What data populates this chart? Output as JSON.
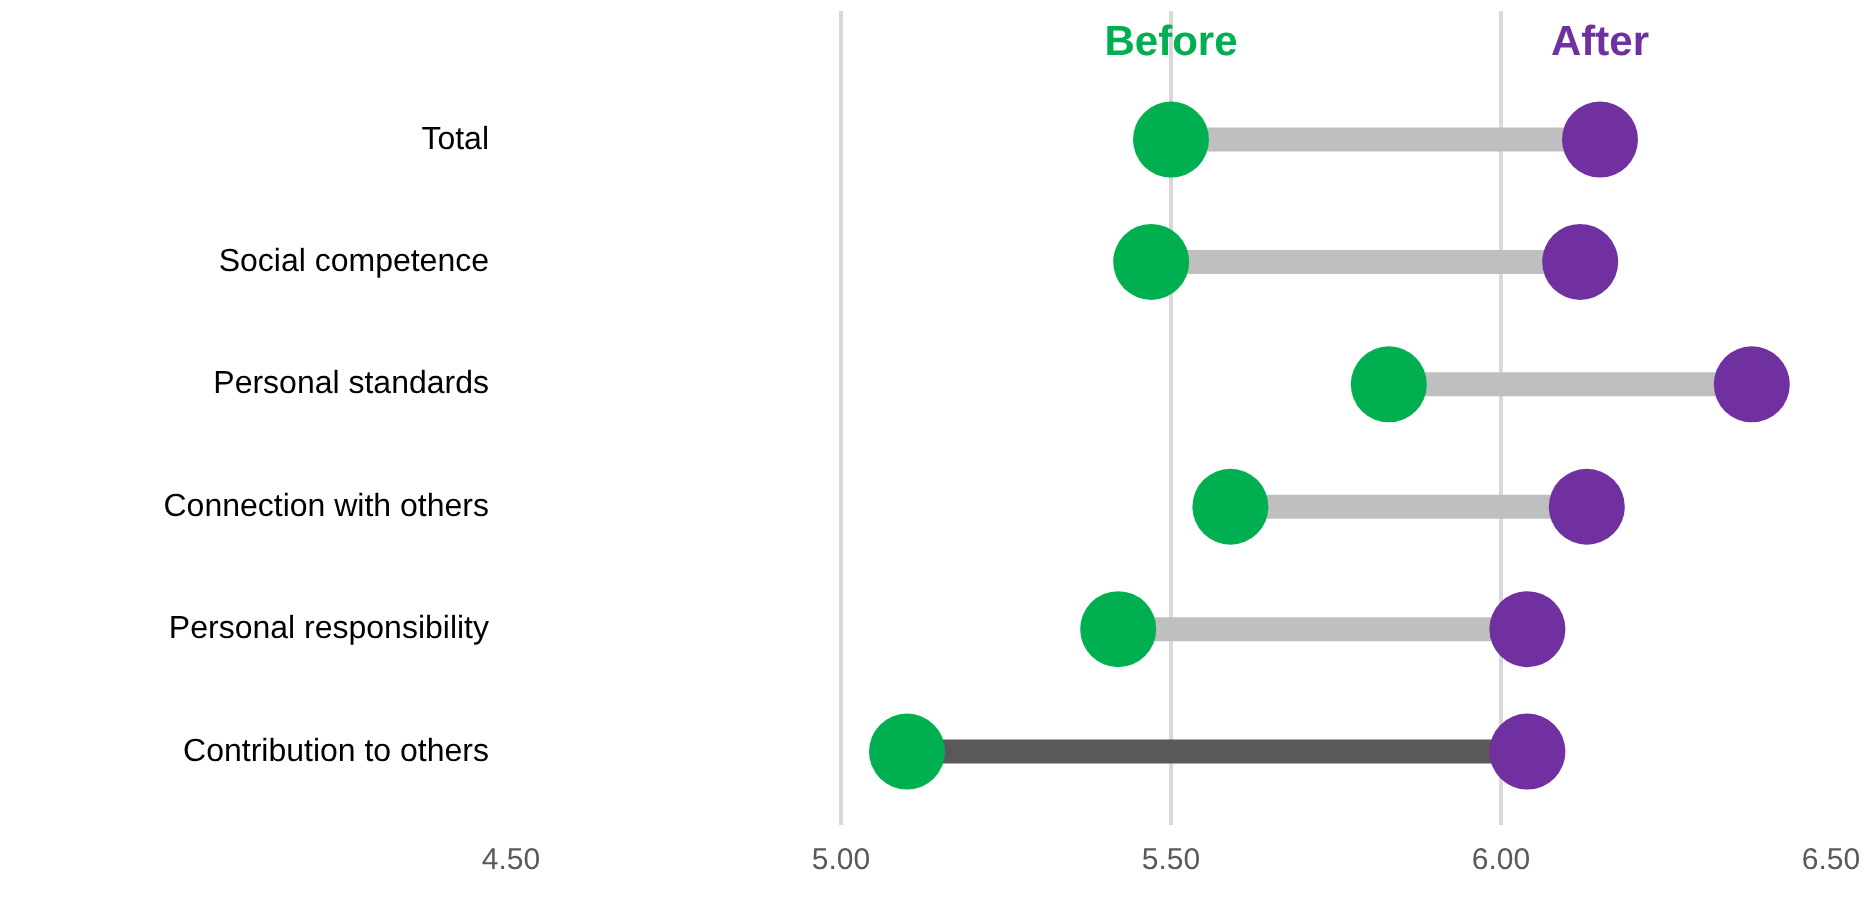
{
  "chart_data": {
    "type": "scatter",
    "orientation": "horizontal",
    "categories": [
      "Total",
      "Social competence",
      "Personal standards",
      "Connection with others",
      "Personal responsibility",
      "Contribution to others"
    ],
    "colors": [
      "#bfbfbf",
      "#bfbfbf",
      "#bfbfbf",
      "#bfbfbf",
      "#bfbfbf",
      "#595959"
    ],
    "series": [
      {
        "name": "Before",
        "color": "#00b050",
        "values": [
          5.5,
          5.47,
          5.83,
          5.59,
          5.42,
          5.1
        ]
      },
      {
        "name": "After",
        "color": "#7030a0",
        "values": [
          6.15,
          6.12,
          6.38,
          6.13,
          6.04,
          6.04
        ]
      }
    ],
    "xlim": [
      4.5,
      6.5
    ],
    "xticks": [
      {
        "value": 4.5,
        "label": "4.50"
      },
      {
        "value": 5.0,
        "label": "5.00"
      },
      {
        "value": 5.5,
        "label": "5.50"
      },
      {
        "value": 6.0,
        "label": "6.00"
      },
      {
        "value": 6.5,
        "label": "6.50"
      }
    ],
    "grid": "x",
    "marker": "circle"
  }
}
